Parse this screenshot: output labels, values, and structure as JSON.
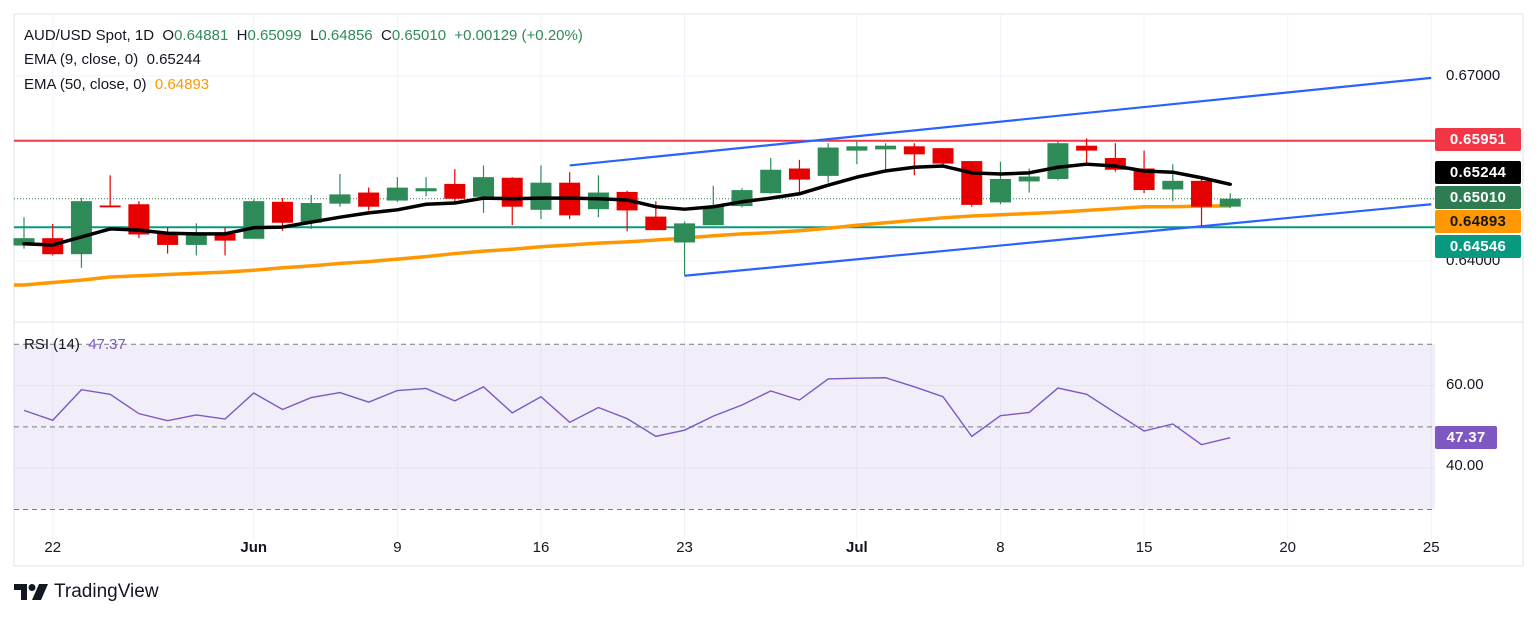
{
  "header": {
    "symbol": "AUD/USD Spot, 1D",
    "open_label": "O",
    "open": "0.64881",
    "high_label": "H",
    "high": "0.65099",
    "low_label": "L",
    "low": "0.64856",
    "close_label": "C",
    "close": "0.65010",
    "change": "+0.00129 (+0.20%)"
  },
  "indicators": {
    "ema9": {
      "label": "EMA (9, close, 0)",
      "value": "0.65244",
      "color": "#000000"
    },
    "ema50": {
      "label": "EMA (50, close, 0)",
      "value": "0.64893",
      "color": "#ff9800"
    },
    "rsi": {
      "label": "RSI (14)",
      "value": "47.37",
      "color": "#7e57c2"
    }
  },
  "price_axis": {
    "ticks": [
      "0.67000",
      "0.64000"
    ],
    "badges": [
      {
        "value": "0.65951",
        "color": "#f23645"
      },
      {
        "value": "0.65244",
        "color": "#000000"
      },
      {
        "value": "0.65010",
        "color": "#2e7d52"
      },
      {
        "value": "0.64893",
        "color": "#ff9800"
      },
      {
        "value": "0.64546",
        "color": "#089981"
      }
    ]
  },
  "rsi_axis": {
    "ticks": [
      "60.00",
      "40.00"
    ],
    "badge": {
      "value": "47.37",
      "color": "#7e57c2"
    }
  },
  "time_axis": [
    {
      "label": "22",
      "date": "2025-05-22",
      "month": false
    },
    {
      "label": "Jun",
      "date": "2025-06-02",
      "month": true
    },
    {
      "label": "9",
      "date": "2025-06-09",
      "month": false
    },
    {
      "label": "16",
      "date": "2025-06-16",
      "month": false
    },
    {
      "label": "23",
      "date": "2025-06-23",
      "month": false
    },
    {
      "label": "Jul",
      "date": "2025-07-01",
      "month": true
    },
    {
      "label": "8",
      "date": "2025-07-08",
      "month": false
    },
    {
      "label": "15",
      "date": "2025-07-15",
      "month": false
    },
    {
      "label": "20",
      "date": "2025-07-20",
      "month": false
    },
    {
      "label": "25",
      "date": "2025-07-25",
      "month": false
    }
  ],
  "branding": {
    "name": "TradingView"
  },
  "chart_data": {
    "type": "candlestick",
    "title": "AUD/USD Spot, 1D",
    "ylim": [
      0.6301,
      0.6799
    ],
    "up_color": "#2e8b57",
    "down_color": "#e60000",
    "candles_fields": [
      "date",
      "open",
      "high",
      "low",
      "close"
    ],
    "candles": [
      [
        "2025-05-21",
        0.6425,
        0.6471,
        0.642,
        0.6437
      ],
      [
        "2025-05-22",
        0.6437,
        0.646,
        0.6409,
        0.6411
      ],
      [
        "2025-05-23",
        0.6411,
        0.6502,
        0.6389,
        0.6497
      ],
      [
        "2025-05-26",
        0.649,
        0.6539,
        0.6487,
        0.6487
      ],
      [
        "2025-05-27",
        0.6492,
        0.6497,
        0.6437,
        0.6443
      ],
      [
        "2025-05-28",
        0.6446,
        0.6455,
        0.6412,
        0.6426
      ],
      [
        "2025-05-29",
        0.6426,
        0.6461,
        0.6409,
        0.6442
      ],
      [
        "2025-05-30",
        0.6444,
        0.6454,
        0.6409,
        0.6433
      ],
      [
        "2025-06-02",
        0.6436,
        0.65,
        0.6436,
        0.6497
      ],
      [
        "2025-06-03",
        0.6496,
        0.6502,
        0.6449,
        0.6462
      ],
      [
        "2025-06-04",
        0.6462,
        0.6507,
        0.6452,
        0.6494
      ],
      [
        "2025-06-05",
        0.6493,
        0.6541,
        0.6488,
        0.6508
      ],
      [
        "2025-06-06",
        0.6511,
        0.6519,
        0.6482,
        0.6488
      ],
      [
        "2025-06-09",
        0.6498,
        0.6536,
        0.6496,
        0.6519
      ],
      [
        "2025-06-10",
        0.6513,
        0.6536,
        0.6505,
        0.6518
      ],
      [
        "2025-06-11",
        0.6525,
        0.6549,
        0.6496,
        0.6501
      ],
      [
        "2025-06-12",
        0.6504,
        0.6555,
        0.6478,
        0.6536
      ],
      [
        "2025-06-13",
        0.6535,
        0.6536,
        0.6458,
        0.6488
      ],
      [
        "2025-06-16",
        0.6483,
        0.6555,
        0.6468,
        0.6527
      ],
      [
        "2025-06-17",
        0.6527,
        0.6544,
        0.6468,
        0.6474
      ],
      [
        "2025-06-18",
        0.6484,
        0.6539,
        0.6471,
        0.6511
      ],
      [
        "2025-06-19",
        0.6512,
        0.6514,
        0.6448,
        0.6482
      ],
      [
        "2025-06-20",
        0.6472,
        0.6497,
        0.645,
        0.645
      ],
      [
        "2025-06-23",
        0.643,
        0.6464,
        0.6376,
        0.6461
      ],
      [
        "2025-06-24",
        0.6458,
        0.6522,
        0.6458,
        0.6489
      ],
      [
        "2025-06-25",
        0.6489,
        0.6518,
        0.6487,
        0.6515
      ],
      [
        "2025-06-26",
        0.651,
        0.6567,
        0.6509,
        0.6548
      ],
      [
        "2025-06-27",
        0.655,
        0.6564,
        0.6512,
        0.6532
      ],
      [
        "2025-06-30",
        0.6538,
        0.6591,
        0.6527,
        0.6584
      ],
      [
        "2025-07-01",
        0.6579,
        0.6596,
        0.6557,
        0.6586
      ],
      [
        "2025-07-02",
        0.6581,
        0.6591,
        0.6546,
        0.6587
      ],
      [
        "2025-07-03",
        0.6586,
        0.6591,
        0.6539,
        0.6573
      ],
      [
        "2025-07-04",
        0.6583,
        0.6583,
        0.6553,
        0.6558
      ],
      [
        "2025-07-07",
        0.6562,
        0.6562,
        0.6488,
        0.6491
      ],
      [
        "2025-07-08",
        0.6495,
        0.6561,
        0.6492,
        0.6533
      ],
      [
        "2025-07-09",
        0.6529,
        0.655,
        0.6511,
        0.6537
      ],
      [
        "2025-07-10",
        0.6533,
        0.6594,
        0.6531,
        0.6591
      ],
      [
        "2025-07-11",
        0.6587,
        0.6599,
        0.6558,
        0.6579
      ],
      [
        "2025-07-14",
        0.6567,
        0.6591,
        0.6545,
        0.6548
      ],
      [
        "2025-07-15",
        0.655,
        0.6579,
        0.651,
        0.6515
      ],
      [
        "2025-07-16",
        0.6516,
        0.6557,
        0.6497,
        0.653
      ],
      [
        "2025-07-17",
        0.653,
        0.6534,
        0.6456,
        0.6488
      ],
      [
        "2025-07-18",
        0.64881,
        0.65099,
        0.64856,
        0.6501
      ]
    ],
    "ema9": [
      0.6428,
      0.6426,
      0.6439,
      0.6452,
      0.645,
      0.6445,
      0.6444,
      0.6444,
      0.6454,
      0.6455,
      0.6463,
      0.6471,
      0.6478,
      0.6483,
      0.6492,
      0.6494,
      0.6502,
      0.6501,
      0.6502,
      0.6502,
      0.6501,
      0.6499,
      0.6488,
      0.6484,
      0.6488,
      0.6496,
      0.6502,
      0.6509,
      0.6523,
      0.6536,
      0.6546,
      0.6552,
      0.6554,
      0.6543,
      0.6541,
      0.6543,
      0.6552,
      0.6557,
      0.6554,
      0.6546,
      0.6544,
      0.6535,
      0.65244
    ],
    "ema50": [
      0.6361,
      0.6365,
      0.6369,
      0.6374,
      0.6376,
      0.6378,
      0.638,
      0.6382,
      0.6385,
      0.6389,
      0.6392,
      0.6396,
      0.6399,
      0.6403,
      0.6407,
      0.6412,
      0.6416,
      0.6419,
      0.6423,
      0.6426,
      0.6429,
      0.6431,
      0.6434,
      0.6437,
      0.6441,
      0.6444,
      0.6446,
      0.6449,
      0.6453,
      0.6458,
      0.6462,
      0.6466,
      0.647,
      0.6473,
      0.6475,
      0.6477,
      0.6479,
      0.6482,
      0.6485,
      0.6488,
      0.6488,
      0.6489,
      0.64893
    ],
    "horizontal_lines": [
      {
        "price": 0.65951,
        "color": "#f23645"
      },
      {
        "price": 0.64546,
        "color": "#089981"
      }
    ],
    "last_price_line": {
      "price": 0.6501,
      "color": "#2e7d52",
      "style": "dotted"
    },
    "trendlines": [
      {
        "from": {
          "date": "2025-06-17",
          "price": 0.6555
        },
        "to": {
          "date": "2025-07-25",
          "price": 0.6697
        },
        "color": "#2962ff"
      },
      {
        "from": {
          "date": "2025-06-23",
          "price": 0.6376
        },
        "to": {
          "date": "2025-07-25",
          "price": 0.6492
        },
        "color": "#2962ff"
      }
    ],
    "price_grid": [
      0.64,
      0.67
    ],
    "rsi": {
      "period": 14,
      "ylim": [
        22.6,
        75.4
      ],
      "levels": [
        70,
        50,
        30
      ],
      "band": [
        30,
        70
      ],
      "values": [
        54.0,
        51.6,
        59.0,
        57.9,
        53.2,
        51.5,
        52.9,
        51.9,
        58.2,
        54.2,
        57.1,
        58.3,
        56.0,
        58.8,
        59.3,
        56.3,
        59.7,
        53.4,
        57.3,
        51.1,
        54.7,
        52.0,
        47.7,
        49.2,
        52.6,
        55.3,
        58.7,
        56.5,
        61.6,
        61.8,
        61.9,
        59.7,
        57.3,
        47.7,
        52.7,
        53.5,
        59.4,
        57.9,
        53.4,
        49.0,
        50.7,
        45.7,
        47.37
      ]
    }
  }
}
